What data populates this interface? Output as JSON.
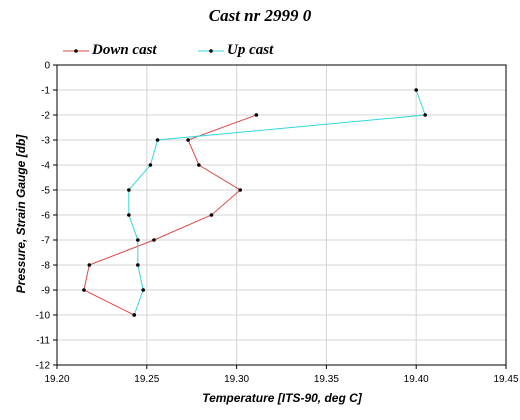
{
  "chart_data": {
    "type": "line",
    "title": "Cast nr 2999 0",
    "xlabel": "Temperature [ITS-90, deg C]",
    "ylabel": "Pressure, Strain Gauge [db]",
    "xlim": [
      19.2,
      19.45
    ],
    "ylim": [
      -12,
      0
    ],
    "xticks": [
      "19.20",
      "19.25",
      "19.30",
      "19.35",
      "19.40",
      "19.45"
    ],
    "yticks": [
      "0",
      "-1",
      "-2",
      "-3",
      "-4",
      "-5",
      "-6",
      "-7",
      "-8",
      "-9",
      "-10",
      "-11",
      "-12"
    ],
    "grid": true,
    "legend_position": "top-left",
    "series": [
      {
        "name": "Down cast",
        "color": "#d94a4a",
        "points": [
          {
            "x": 19.311,
            "y": -2
          },
          {
            "x": 19.273,
            "y": -3
          },
          {
            "x": 19.279,
            "y": -4
          },
          {
            "x": 19.302,
            "y": -5
          },
          {
            "x": 19.286,
            "y": -6
          },
          {
            "x": 19.254,
            "y": -7
          },
          {
            "x": 19.218,
            "y": -8
          },
          {
            "x": 19.215,
            "y": -9
          },
          {
            "x": 19.243,
            "y": -10
          }
        ]
      },
      {
        "name": "Up cast",
        "color": "#33d6e0",
        "points": [
          {
            "x": 19.243,
            "y": -10
          },
          {
            "x": 19.248,
            "y": -9
          },
          {
            "x": 19.245,
            "y": -8
          },
          {
            "x": 19.245,
            "y": -7
          },
          {
            "x": 19.24,
            "y": -6
          },
          {
            "x": 19.24,
            "y": -5
          },
          {
            "x": 19.252,
            "y": -4
          },
          {
            "x": 19.256,
            "y": -3
          },
          {
            "x": 19.405,
            "y": -2
          },
          {
            "x": 19.4,
            "y": -1
          }
        ]
      }
    ]
  }
}
